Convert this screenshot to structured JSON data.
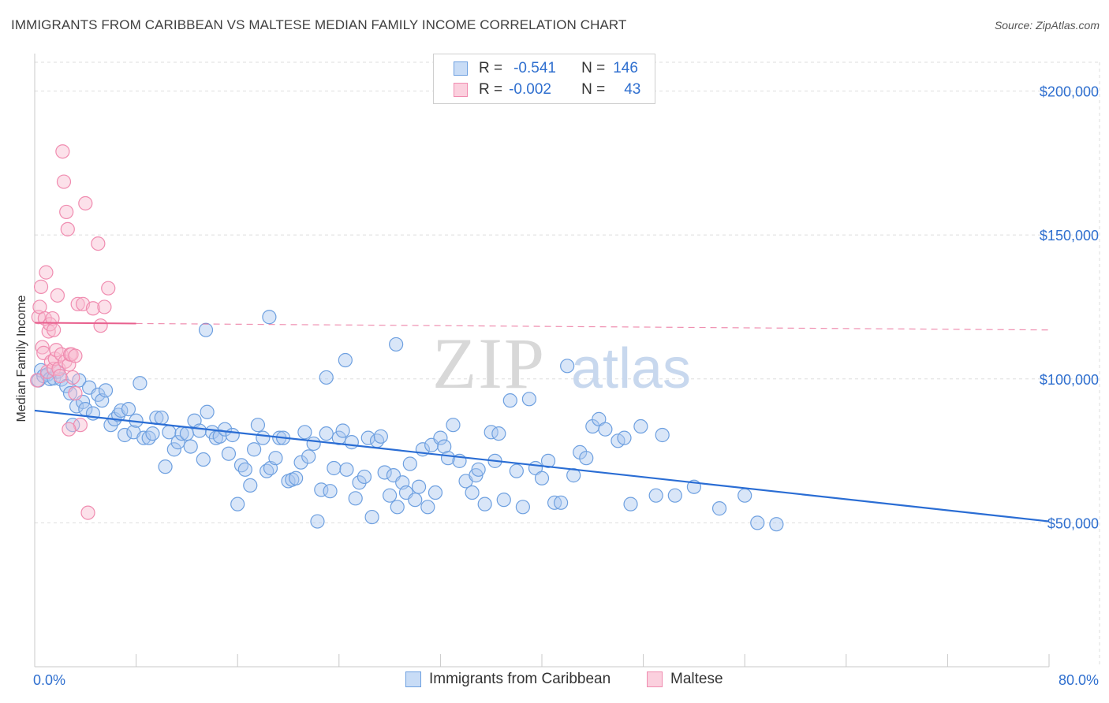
{
  "header": {
    "title": "IMMIGRANTS FROM CARIBBEAN VS MALTESE MEDIAN FAMILY INCOME CORRELATION CHART",
    "source": "Source: ZipAtlas.com"
  },
  "watermark": {
    "zip": "ZIP",
    "atlas": "atlas"
  },
  "legend_top": {
    "rows": [
      {
        "r_label": "R =",
        "r_value": "-0.541",
        "n_label": "N =",
        "n_value": "146",
        "color": "#6ea0e0"
      },
      {
        "r_label": "R =",
        "r_value": "-0.002",
        "n_label": "N =",
        "n_value": "43",
        "color": "#f08cb0"
      }
    ]
  },
  "bottom_legend": {
    "blue_label": "Immigrants from Caribbean",
    "pink_label": "Maltese"
  },
  "colors": {
    "blue_fill": "#aac8f0",
    "blue_stroke": "#6ea0e0",
    "blue_line": "#2a6dd4",
    "pink_fill": "#f8bcd0",
    "pink_stroke": "#f08cb0",
    "pink_line": "#e8608e",
    "axis_text": "#2f6fcf",
    "grid": "#dddddd"
  },
  "chart_data": {
    "type": "scatter",
    "title": "IMMIGRANTS FROM CARIBBEAN VS MALTESE MEDIAN FAMILY INCOME CORRELATION CHART",
    "xlabel": "",
    "ylabel": "Median Family Income",
    "xlim": [
      0,
      80
    ],
    "ylim": [
      0,
      210000
    ],
    "x_tick_labels": [
      "0.0%",
      "80.0%"
    ],
    "y_ticks": [
      {
        "value": 50000,
        "label": "$50,000"
      },
      {
        "value": 100000,
        "label": "$100,000"
      },
      {
        "value": 150000,
        "label": "$150,000"
      },
      {
        "value": 200000,
        "label": "$200,000"
      }
    ],
    "grid": true,
    "legend_position": "top-center",
    "series": [
      {
        "name": "Immigrants from Caribbean",
        "r": -0.541,
        "n": 146,
        "trend": {
          "x0": 0,
          "y0": 89000,
          "x1": 80,
          "y1": 50500,
          "style": "solid"
        },
        "points": [
          [
            0.3,
            99500
          ],
          [
            0.5,
            103000
          ],
          [
            0.7,
            101000
          ],
          [
            1.0,
            101500
          ],
          [
            1.2,
            100000
          ],
          [
            1.5,
            100200
          ],
          [
            1.8,
            102500
          ],
          [
            2.1,
            99800
          ],
          [
            2.5,
            97500
          ],
          [
            2.8,
            95000
          ],
          [
            3.0,
            84000
          ],
          [
            3.3,
            90500
          ],
          [
            3.5,
            99500
          ],
          [
            3.8,
            92000
          ],
          [
            4.0,
            89500
          ],
          [
            4.3,
            97000
          ],
          [
            4.6,
            88000
          ],
          [
            5.0,
            94500
          ],
          [
            5.3,
            92500
          ],
          [
            5.6,
            96000
          ],
          [
            6.0,
            84000
          ],
          [
            6.3,
            86000
          ],
          [
            6.6,
            87500
          ],
          [
            6.8,
            89000
          ],
          [
            7.1,
            80500
          ],
          [
            7.4,
            89500
          ],
          [
            7.8,
            81500
          ],
          [
            8.0,
            85500
          ],
          [
            8.3,
            98500
          ],
          [
            8.6,
            79500
          ],
          [
            9.0,
            79500
          ],
          [
            9.3,
            81000
          ],
          [
            9.6,
            86500
          ],
          [
            10.0,
            86500
          ],
          [
            10.3,
            69500
          ],
          [
            10.6,
            81500
          ],
          [
            11.0,
            75500
          ],
          [
            11.3,
            78000
          ],
          [
            11.6,
            81000
          ],
          [
            12.0,
            81000
          ],
          [
            12.3,
            76500
          ],
          [
            12.6,
            85500
          ],
          [
            13.0,
            82000
          ],
          [
            13.3,
            72000
          ],
          [
            13.6,
            88500
          ],
          [
            14.0,
            81500
          ],
          [
            14.3,
            79500
          ],
          [
            14.6,
            80000
          ],
          [
            15.0,
            82500
          ],
          [
            15.3,
            74000
          ],
          [
            15.6,
            80500
          ],
          [
            16.0,
            56500
          ],
          [
            16.3,
            70000
          ],
          [
            16.6,
            68500
          ],
          [
            17.0,
            63000
          ],
          [
            17.3,
            75500
          ],
          [
            17.6,
            84000
          ],
          [
            18.0,
            79500
          ],
          [
            18.3,
            68000
          ],
          [
            18.6,
            69000
          ],
          [
            19.0,
            72500
          ],
          [
            19.3,
            79500
          ],
          [
            19.6,
            79500
          ],
          [
            20.0,
            64500
          ],
          [
            20.3,
            65000
          ],
          [
            20.6,
            65500
          ],
          [
            21.0,
            71000
          ],
          [
            21.3,
            81500
          ],
          [
            21.6,
            73000
          ],
          [
            22.0,
            77500
          ],
          [
            22.3,
            50500
          ],
          [
            22.6,
            61500
          ],
          [
            23.0,
            81000
          ],
          [
            23.3,
            61000
          ],
          [
            23.6,
            69000
          ],
          [
            24.0,
            79500
          ],
          [
            24.3,
            82000
          ],
          [
            24.6,
            68500
          ],
          [
            25.0,
            78000
          ],
          [
            25.3,
            58500
          ],
          [
            25.6,
            64000
          ],
          [
            26.0,
            66000
          ],
          [
            26.3,
            79500
          ],
          [
            26.6,
            52000
          ],
          [
            27.0,
            78500
          ],
          [
            27.3,
            80000
          ],
          [
            27.6,
            67500
          ],
          [
            28.0,
            59500
          ],
          [
            28.3,
            66500
          ],
          [
            28.6,
            55500
          ],
          [
            29.0,
            64000
          ],
          [
            29.3,
            60500
          ],
          [
            29.6,
            70500
          ],
          [
            30.0,
            58000
          ],
          [
            30.3,
            62500
          ],
          [
            30.6,
            75500
          ],
          [
            31.0,
            55500
          ],
          [
            31.3,
            77000
          ],
          [
            31.6,
            60500
          ],
          [
            32.0,
            79500
          ],
          [
            32.3,
            76500
          ],
          [
            32.6,
            72500
          ],
          [
            33.0,
            84000
          ],
          [
            33.5,
            71500
          ],
          [
            34.0,
            64500
          ],
          [
            34.5,
            60500
          ],
          [
            34.8,
            66500
          ],
          [
            35.0,
            68500
          ],
          [
            35.5,
            56500
          ],
          [
            36.0,
            81500
          ],
          [
            36.3,
            71500
          ],
          [
            36.6,
            81000
          ],
          [
            37.0,
            58000
          ],
          [
            37.5,
            92500
          ],
          [
            38.0,
            68000
          ],
          [
            38.5,
            55500
          ],
          [
            39.0,
            93000
          ],
          [
            39.5,
            69000
          ],
          [
            40.0,
            65500
          ],
          [
            40.5,
            71500
          ],
          [
            41.0,
            57000
          ],
          [
            41.5,
            57000
          ],
          [
            42.0,
            104500
          ],
          [
            42.5,
            66500
          ],
          [
            43.0,
            74500
          ],
          [
            43.5,
            72500
          ],
          [
            44.0,
            83500
          ],
          [
            44.5,
            86000
          ],
          [
            45.0,
            82500
          ],
          [
            46.0,
            78500
          ],
          [
            46.5,
            79500
          ],
          [
            47.0,
            56500
          ],
          [
            47.8,
            83500
          ],
          [
            49.0,
            59500
          ],
          [
            49.5,
            80500
          ],
          [
            50.5,
            59500
          ],
          [
            52.0,
            62500
          ],
          [
            54.0,
            55000
          ],
          [
            56.0,
            59500
          ],
          [
            57.0,
            50000
          ],
          [
            58.5,
            49500
          ],
          [
            13.5,
            117000
          ],
          [
            18.5,
            121500
          ],
          [
            23.0,
            100500
          ],
          [
            24.5,
            106500
          ],
          [
            28.5,
            112000
          ]
        ]
      },
      {
        "name": "Maltese",
        "r": -0.002,
        "n": 43,
        "trend": {
          "x0": 0,
          "y0": 119500,
          "x1": 80,
          "y1": 117000,
          "style": "dashed-after",
          "solid_until": 8
        },
        "points": [
          [
            0.2,
            99500
          ],
          [
            0.3,
            121500
          ],
          [
            0.4,
            125000
          ],
          [
            0.5,
            132000
          ],
          [
            0.6,
            111000
          ],
          [
            0.7,
            109000
          ],
          [
            0.8,
            121000
          ],
          [
            0.9,
            137000
          ],
          [
            1.0,
            102500
          ],
          [
            1.1,
            116500
          ],
          [
            1.2,
            119000
          ],
          [
            1.3,
            106000
          ],
          [
            1.4,
            121000
          ],
          [
            1.5,
            103500
          ],
          [
            1.6,
            107000
          ],
          [
            1.7,
            110000
          ],
          [
            1.8,
            129000
          ],
          [
            1.9,
            103500
          ],
          [
            2.0,
            101000
          ],
          [
            2.1,
            108500
          ],
          [
            2.2,
            179000
          ],
          [
            2.3,
            168500
          ],
          [
            2.4,
            106000
          ],
          [
            2.5,
            158000
          ],
          [
            2.6,
            152000
          ],
          [
            2.7,
            105000
          ],
          [
            2.8,
            108500
          ],
          [
            3.0,
            100500
          ],
          [
            3.2,
            95000
          ],
          [
            3.4,
            126000
          ],
          [
            3.6,
            84000
          ],
          [
            3.8,
            126000
          ],
          [
            4.0,
            161000
          ],
          [
            4.2,
            53500
          ],
          [
            4.6,
            124500
          ],
          [
            5.0,
            147000
          ],
          [
            5.2,
            118500
          ],
          [
            5.5,
            125000
          ],
          [
            5.8,
            131500
          ],
          [
            2.7,
            82500
          ],
          [
            2.9,
            108500
          ],
          [
            3.2,
            108000
          ],
          [
            1.5,
            117000
          ]
        ]
      }
    ]
  }
}
